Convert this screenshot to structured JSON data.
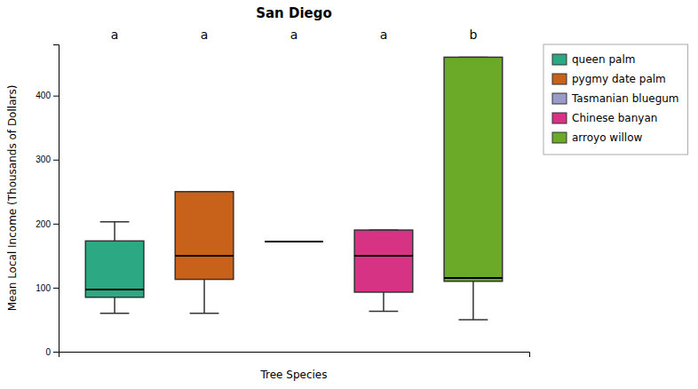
{
  "chart_data": {
    "type": "box",
    "title": "San Diego",
    "xlabel": "Tree Species",
    "ylabel": "Mean Local Income (Thousands of Dollars)",
    "categories": [
      "queen palm",
      "pygmy date palm",
      "Tasmanian bluegum",
      "Chinese banyan",
      "arroyo willow"
    ],
    "colors": [
      "#2ca882",
      "#c8611a",
      "#9b9bc8",
      "#d63384",
      "#6aaa28"
    ],
    "boxes": [
      {
        "whislo": 60,
        "q1": 85,
        "med": 97,
        "q3": 173,
        "whishi": 203
      },
      {
        "whislo": 60,
        "q1": 113,
        "med": 150,
        "q3": 250,
        "whishi": 250
      },
      {
        "whislo": 172,
        "q1": 172,
        "med": 172,
        "q3": 172,
        "whishi": 172
      },
      {
        "whislo": 63,
        "q1": 93,
        "med": 150,
        "q3": 190,
        "whishi": 190
      },
      {
        "whislo": 50,
        "q1": 110,
        "med": 115,
        "q3": 460,
        "whishi": 460
      }
    ],
    "annotations": [
      "a",
      "a",
      "a",
      "a",
      "b"
    ],
    "ylim": [
      0,
      480
    ],
    "yticks": [
      0,
      100,
      200,
      300,
      400
    ],
    "grid": false,
    "legend": "right",
    "tick_labels": "y"
  }
}
